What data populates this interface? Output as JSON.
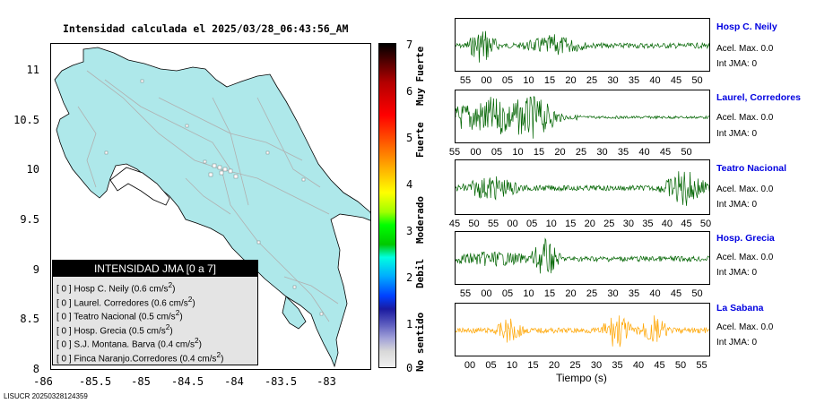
{
  "map": {
    "title": "Intensidad calculada el 2025/03/28_06:43:56_AM",
    "y_ticks": [
      "11",
      "10.5",
      "10",
      "9.5",
      "9",
      "8.5",
      "8"
    ],
    "x_ticks": [
      "-86",
      "-85.5",
      "-85",
      "-84.5",
      "-84",
      "-83.5",
      "-83"
    ],
    "legend": {
      "header": "INTENSIDAD JMA [0 a 7]",
      "rows": [
        {
          "int": "[ 0 ]",
          "name": "Hosp C. Neily",
          "val": "(0.6 cm/s",
          "exp": "2",
          "close": ")"
        },
        {
          "int": "[ 0 ]",
          "name": "Laurel. Corredores",
          "val": "(0.6 cm/s",
          "exp": "2",
          "close": ")"
        },
        {
          "int": "[ 0 ]",
          "name": "Teatro Nacional",
          "val": "(0.5 cm/s",
          "exp": "2",
          "close": ")"
        },
        {
          "int": "[ 0 ]",
          "name": "Hosp. Grecia",
          "val": "(0.5 cm/s",
          "exp": "2",
          "close": ")"
        },
        {
          "int": "[ 0 ]",
          "name": "S.J. Montana. Barva",
          "val": "(0.4 cm/s",
          "exp": "2",
          "close": ")"
        },
        {
          "int": "[ 0 ]",
          "name": "Finca Naranjo.Corredores",
          "val": "(0.4 cm/s",
          "exp": "2",
          "close": ")"
        }
      ]
    }
  },
  "colorbar": {
    "ticks": [
      "7",
      "6",
      "5",
      "4",
      "3",
      "2",
      "1",
      "0"
    ],
    "labels": [
      "Muy Fuerte",
      "Fuerte",
      "Moderado",
      "Debil",
      "No sentido"
    ]
  },
  "traces": [
    {
      "name": "Hosp C. Neily",
      "acel": "Acel. Max. 0.0",
      "jma": "Int JMA: 0",
      "color": "#006400",
      "ticks": [
        "55",
        "00",
        "05",
        "10",
        "15",
        "20",
        "25",
        "30",
        "35",
        "40",
        "45",
        "50"
      ]
    },
    {
      "name": "Laurel, Corredores",
      "acel": "Acel. Max. 0.0",
      "jma": "Int JMA: 0",
      "color": "#006400",
      "ticks": [
        "55",
        "00",
        "05",
        "10",
        "15",
        "20",
        "25",
        "30",
        "35",
        "40",
        "45",
        "50"
      ]
    },
    {
      "name": "Teatro Nacional",
      "acel": "Acel. Max. 0.0",
      "jma": "Int JMA: 0",
      "color": "#006400",
      "ticks": [
        "45",
        "50",
        "55",
        "00",
        "05",
        "10",
        "15",
        "20",
        "25",
        "30",
        "35",
        "40",
        "45",
        "50"
      ]
    },
    {
      "name": "Hosp. Grecia",
      "acel": "Acel. Max. 0.0",
      "jma": "Int JMA: 0",
      "color": "#006400",
      "ticks": [
        "55",
        "00",
        "05",
        "10",
        "15",
        "20",
        "25",
        "30",
        "35",
        "40",
        "45",
        "50"
      ]
    },
    {
      "name": "La Sabana",
      "acel": "Acel. Max. 0.0",
      "jma": "Int JMA: 0",
      "color": "#ffa500",
      "ticks": [
        "00",
        "05",
        "10",
        "15",
        "20",
        "25",
        "30",
        "35",
        "40",
        "45",
        "50",
        "55"
      ]
    }
  ],
  "time_label": "Tiempo (s)",
  "footer_id": "LISUCR 20250328124359"
}
